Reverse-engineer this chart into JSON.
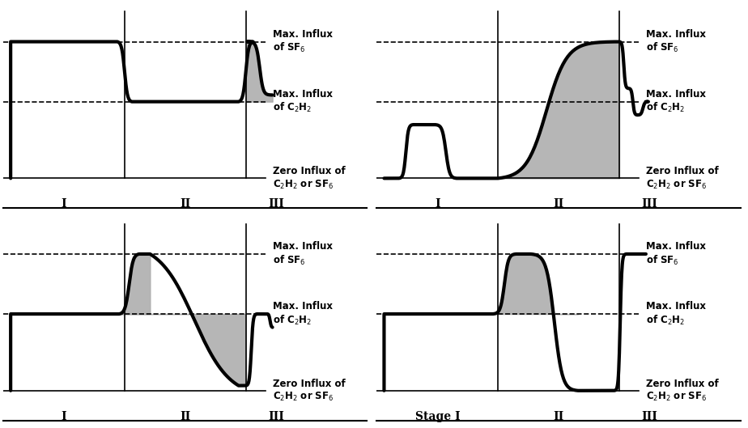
{
  "bg_color": "#ffffff",
  "fill_color": "#aaaaaa",
  "line_width": 3.0,
  "sf6_level": 0.82,
  "c2h2_level": 0.46,
  "label_sf6": "Max. Influx\nof SF$_6$",
  "label_c2h2": "Max. Influx\nof C$_2$H$_2$",
  "label_zero": "Zero Influx of\nC$_2$H$_2$ or SF$_6$",
  "stage_labels_normal": [
    "I",
    "II",
    "III"
  ],
  "stage_labels_alt": [
    "Stage I",
    "II",
    "III"
  ],
  "font_size": 8.5
}
